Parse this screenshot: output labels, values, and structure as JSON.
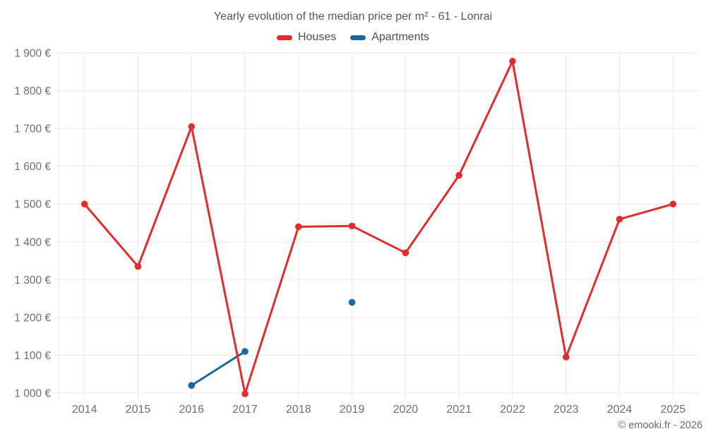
{
  "footer": {
    "copyright": "© emooki.fr - 2026"
  },
  "colors": {
    "houses": "#e02c2c",
    "apartments": "#1769a0",
    "grid": "#e9e9e9",
    "axis_text": "#6e6e6e",
    "title_text": "#575757",
    "copyright_text": "#6b6b6b"
  },
  "chart_data": {
    "type": "line",
    "title": "Yearly evolution of the median price per m² - 61 - Lonrai",
    "categories": [
      "2014",
      "2015",
      "2016",
      "2017",
      "2018",
      "2019",
      "2020",
      "2021",
      "2022",
      "2023",
      "2024",
      "2025"
    ],
    "series": [
      {
        "name": "Houses",
        "color": "#e02c2c",
        "values": [
          1500,
          1335,
          1705,
          998,
          1440,
          1442,
          1371,
          1576,
          1878,
          1095,
          1460,
          1500
        ]
      },
      {
        "name": "Apartments",
        "color": "#1769a0",
        "values": [
          null,
          null,
          1020,
          1110,
          null,
          1240,
          null,
          null,
          null,
          null,
          null,
          null
        ]
      }
    ],
    "xlabel": "",
    "ylabel": "",
    "unit": "€",
    "ylim": [
      1000,
      1900
    ],
    "ytick_step": 100,
    "yticks": [
      {
        "value": 1000,
        "label": "1 000 €"
      },
      {
        "value": 1100,
        "label": "1 100 €"
      },
      {
        "value": 1200,
        "label": "1 200 €"
      },
      {
        "value": 1300,
        "label": "1 300 €"
      },
      {
        "value": 1400,
        "label": "1 400 €"
      },
      {
        "value": 1500,
        "label": "1 500 €"
      },
      {
        "value": 1600,
        "label": "1 600 €"
      },
      {
        "value": 1700,
        "label": "1 700 €"
      },
      {
        "value": 1800,
        "label": "1 800 €"
      },
      {
        "value": 1900,
        "label": "1 900 €"
      }
    ],
    "grid": true,
    "legend_position": "top"
  }
}
